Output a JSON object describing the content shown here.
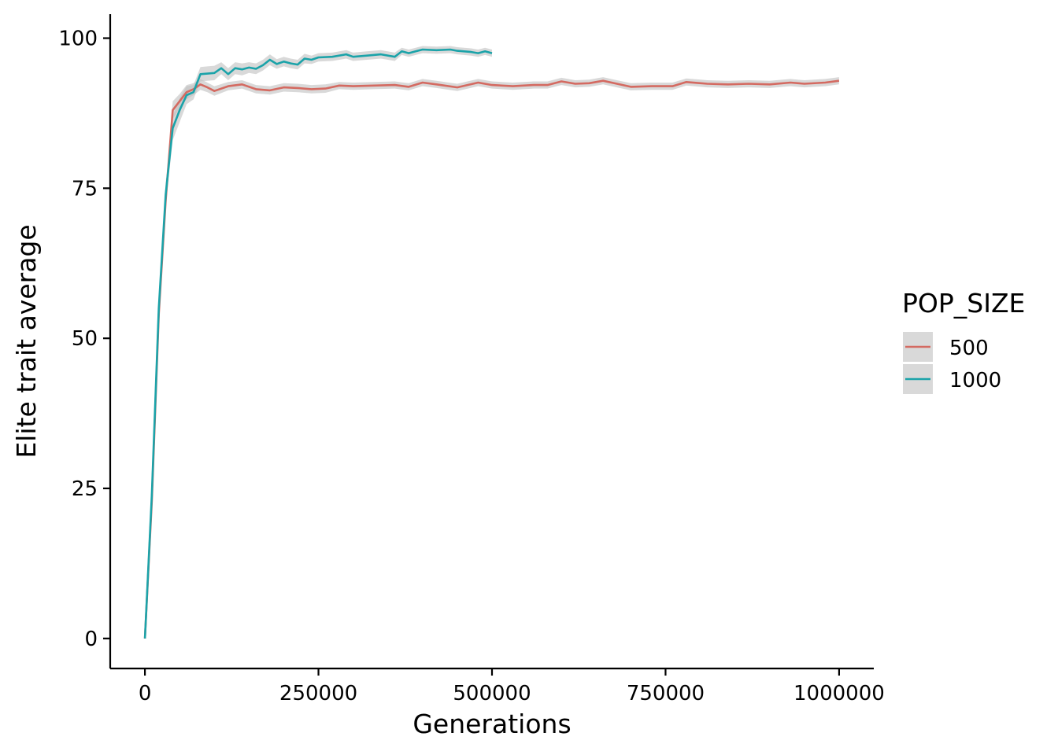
{
  "chart_data": {
    "type": "line",
    "title": "",
    "xlabel": "Generations",
    "ylabel": "Elite trait average",
    "xlim": [
      -50000,
      1050000
    ],
    "ylim": [
      -5,
      104
    ],
    "x_ticks": [
      0,
      250000,
      500000,
      750000,
      1000000
    ],
    "x_tick_labels": [
      "0",
      "250000",
      "500000",
      "750000",
      "1000000"
    ],
    "y_ticks": [
      0,
      25,
      50,
      75,
      100
    ],
    "y_tick_labels": [
      "0",
      "25",
      "50",
      "75",
      "100"
    ],
    "grid": false,
    "legend": {
      "title": "POP_SIZE",
      "placement": "right",
      "entries": [
        "500",
        "1000"
      ]
    },
    "ribbon_color": "#bfbfbf",
    "series": [
      {
        "name": "500",
        "color": "#d46a61",
        "points": [
          [
            0,
            0
          ],
          [
            10000,
            23
          ],
          [
            20000,
            54
          ],
          [
            30000,
            73
          ],
          [
            40000,
            88
          ],
          [
            50000,
            89.5
          ],
          [
            60000,
            91
          ],
          [
            70000,
            91.5
          ],
          [
            80000,
            92.3
          ],
          [
            90000,
            91.8
          ],
          [
            100000,
            91.2
          ],
          [
            120000,
            92
          ],
          [
            140000,
            92.3
          ],
          [
            160000,
            91.5
          ],
          [
            180000,
            91.3
          ],
          [
            200000,
            91.8
          ],
          [
            220000,
            91.7
          ],
          [
            240000,
            91.5
          ],
          [
            260000,
            91.6
          ],
          [
            280000,
            92.1
          ],
          [
            300000,
            92
          ],
          [
            330000,
            92.1
          ],
          [
            360000,
            92.2
          ],
          [
            380000,
            91.9
          ],
          [
            400000,
            92.6
          ],
          [
            420000,
            92.3
          ],
          [
            450000,
            91.8
          ],
          [
            480000,
            92.6
          ],
          [
            500000,
            92.2
          ],
          [
            530000,
            92
          ],
          [
            560000,
            92.2
          ],
          [
            580000,
            92.2
          ],
          [
            600000,
            92.8
          ],
          [
            620000,
            92.4
          ],
          [
            640000,
            92.5
          ],
          [
            660000,
            92.9
          ],
          [
            680000,
            92.4
          ],
          [
            700000,
            91.9
          ],
          [
            730000,
            92
          ],
          [
            760000,
            92
          ],
          [
            780000,
            92.7
          ],
          [
            810000,
            92.4
          ],
          [
            840000,
            92.3
          ],
          [
            870000,
            92.4
          ],
          [
            900000,
            92.3
          ],
          [
            930000,
            92.6
          ],
          [
            950000,
            92.4
          ],
          [
            980000,
            92.6
          ],
          [
            1000000,
            92.9
          ]
        ],
        "ribbon_half_width": [
          0,
          1,
          2,
          2,
          1.5,
          1.2,
          1.2,
          1,
          0.9,
          0.8,
          0.8,
          0.7,
          0.7,
          0.7,
          0.7,
          0.7,
          0.7,
          0.7,
          0.7,
          0.6,
          0.6,
          0.6,
          0.6,
          0.6,
          0.6,
          0.6,
          0.6,
          0.6,
          0.6,
          0.6,
          0.6,
          0.6,
          0.6,
          0.6,
          0.6,
          0.6,
          0.6,
          0.6,
          0.6,
          0.6,
          0.6,
          0.6,
          0.6,
          0.6,
          0.6,
          0.6,
          0.6,
          0.6,
          0.6
        ]
      },
      {
        "name": "1000",
        "color": "#1ba3a9",
        "points": [
          [
            0,
            0
          ],
          [
            10000,
            24
          ],
          [
            20000,
            55
          ],
          [
            30000,
            74
          ],
          [
            40000,
            85
          ],
          [
            50000,
            88
          ],
          [
            60000,
            90.5
          ],
          [
            70000,
            91
          ],
          [
            80000,
            94
          ],
          [
            90000,
            94.1
          ],
          [
            100000,
            94.2
          ],
          [
            110000,
            95
          ],
          [
            120000,
            94
          ],
          [
            130000,
            95
          ],
          [
            140000,
            94.8
          ],
          [
            150000,
            95.1
          ],
          [
            160000,
            94.9
          ],
          [
            170000,
            95.5
          ],
          [
            180000,
            96.4
          ],
          [
            190000,
            95.7
          ],
          [
            200000,
            96.1
          ],
          [
            210000,
            95.8
          ],
          [
            220000,
            95.6
          ],
          [
            230000,
            96.6
          ],
          [
            240000,
            96.4
          ],
          [
            250000,
            96.8
          ],
          [
            270000,
            96.9
          ],
          [
            290000,
            97.3
          ],
          [
            300000,
            96.9
          ],
          [
            320000,
            97.1
          ],
          [
            340000,
            97.3
          ],
          [
            360000,
            96.9
          ],
          [
            370000,
            97.8
          ],
          [
            380000,
            97.5
          ],
          [
            390000,
            97.8
          ],
          [
            400000,
            98.1
          ],
          [
            420000,
            98
          ],
          [
            440000,
            98.1
          ],
          [
            450000,
            97.9
          ],
          [
            470000,
            97.7
          ],
          [
            480000,
            97.5
          ],
          [
            490000,
            97.8
          ],
          [
            500000,
            97.5
          ]
        ],
        "ribbon_half_width": [
          0,
          1,
          2,
          2,
          2,
          2,
          1.5,
          1.2,
          1.2,
          1.2,
          1.2,
          1,
          1,
          1,
          1,
          0.9,
          0.9,
          0.9,
          0.9,
          0.8,
          0.8,
          0.8,
          0.8,
          0.8,
          0.7,
          0.7,
          0.7,
          0.7,
          0.7,
          0.7,
          0.7,
          0.7,
          0.6,
          0.6,
          0.6,
          0.6,
          0.6,
          0.6,
          0.6,
          0.6,
          0.6,
          0.6,
          0.6
        ]
      }
    ]
  }
}
